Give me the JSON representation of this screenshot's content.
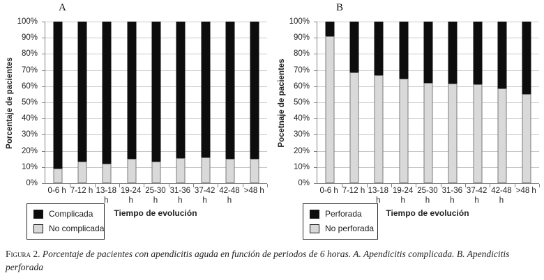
{
  "colors": {
    "dark": "#0d0d0d",
    "light": "#d9d9d9",
    "grid": "#c8c8c8",
    "axis": "#828282"
  },
  "figure": {
    "caption_label": "Figura 2.",
    "caption_text": " Porcentaje de pacientes con apendicitis aguda en función de periodos de 6 horas. A. Apendicitis complicada. B. Apendicitis perforada"
  },
  "chart_data": [
    {
      "type": "bar",
      "stacked": true,
      "panel_label": "A",
      "ylabel": "Porcentaje de pacientes",
      "xlabel": "Tiempo de evolución",
      "categories": [
        "0-6 h",
        "7-12 h",
        "13-18 h",
        "19-24 h",
        "25-30 h",
        "31-36 h",
        "37-42 h",
        "42-48 h",
        ">48 h"
      ],
      "ylim": [
        0,
        100
      ],
      "ytick_step": 10,
      "yticks": [
        "100%",
        "90%",
        "80%",
        "70%",
        "60%",
        "50%",
        "40%",
        "30%",
        "20%",
        "10%",
        "0%"
      ],
      "grid": true,
      "legend_position": "bottom-left",
      "series": [
        {
          "name": "No complicada",
          "color_key": "light",
          "values": [
            9,
            13.5,
            12,
            15,
            13.5,
            15.5,
            16,
            15,
            15
          ]
        },
        {
          "name": "Complicada",
          "color_key": "dark",
          "values": [
            91,
            86.5,
            88,
            85,
            86.5,
            84.5,
            84,
            85,
            85
          ]
        }
      ],
      "legend": [
        {
          "label": "Complicada",
          "swatch": "dark"
        },
        {
          "label": "No complicada",
          "swatch": "light"
        }
      ]
    },
    {
      "type": "bar",
      "stacked": true,
      "panel_label": "B",
      "ylabel": "Pocetnaje de pacientes",
      "xlabel": "Tiempo de evolución",
      "categories": [
        "0-6 h",
        "7-12 h",
        "13-18 h",
        "19-24 h",
        "25-30 h",
        "31-36 h",
        "37-42 h",
        "42-48 h",
        ">48 h"
      ],
      "ylim": [
        0,
        100
      ],
      "ytick_step": 10,
      "yticks": [
        "100%",
        "90%",
        "80%",
        "70%",
        "60%",
        "50%",
        "40%",
        "30%",
        "20%",
        "10%",
        "0%"
      ],
      "grid": true,
      "legend_position": "bottom-left",
      "series": [
        {
          "name": "No perforada",
          "color_key": "light",
          "values": [
            91,
            68.5,
            67,
            64.5,
            62,
            61.5,
            61,
            58.5,
            55
          ]
        },
        {
          "name": "Perforada",
          "color_key": "dark",
          "values": [
            9,
            31.5,
            33,
            35.5,
            38,
            38.5,
            39,
            41.5,
            45
          ]
        }
      ],
      "legend": [
        {
          "label": "Perforada",
          "swatch": "dark"
        },
        {
          "label": "No perforada",
          "swatch": "light"
        }
      ]
    }
  ]
}
